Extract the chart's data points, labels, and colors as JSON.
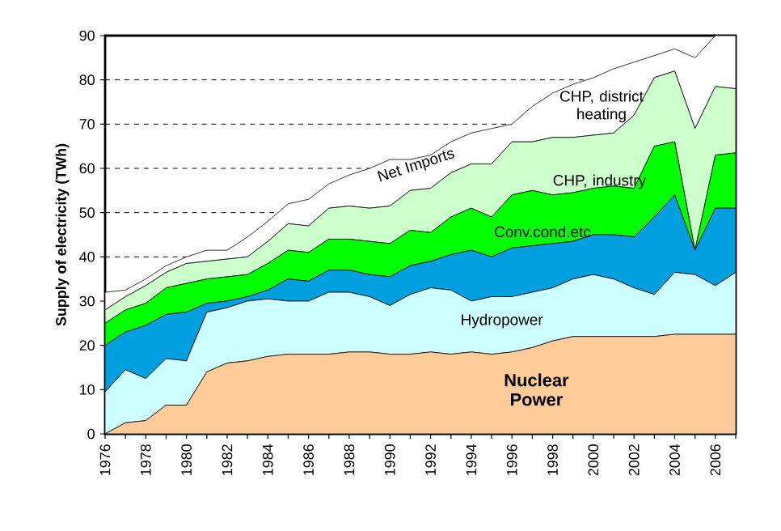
{
  "chart_data": {
    "type": "area",
    "stacked": true,
    "ylabel": "Supply of electricity (TWh)",
    "x": [
      1976,
      1977,
      1978,
      1979,
      1980,
      1981,
      1982,
      1983,
      1984,
      1985,
      1986,
      1987,
      1988,
      1989,
      1990,
      1991,
      1992,
      1993,
      1994,
      1995,
      1996,
      1997,
      1998,
      1999,
      2000,
      2001,
      2002,
      2003,
      2004,
      2005,
      2006,
      2007
    ],
    "xlim": [
      1976,
      2007
    ],
    "xticks": [
      {
        "value": 1976,
        "label": "1976"
      },
      {
        "value": 1977,
        "label": null
      },
      {
        "value": 1978,
        "label": "1978"
      },
      {
        "value": 1979,
        "label": null
      },
      {
        "value": 1980,
        "label": "1980"
      },
      {
        "value": 1981,
        "label": null
      },
      {
        "value": 1982,
        "label": "1982"
      },
      {
        "value": 1983,
        "label": null
      },
      {
        "value": 1984,
        "label": "1984"
      },
      {
        "value": 1985,
        "label": null
      },
      {
        "value": 1986,
        "label": "1986"
      },
      {
        "value": 1987,
        "label": null
      },
      {
        "value": 1988,
        "label": "1988"
      },
      {
        "value": 1989,
        "label": null
      },
      {
        "value": 1990,
        "label": "1990"
      },
      {
        "value": 1991,
        "label": null
      },
      {
        "value": 1992,
        "label": "1992"
      },
      {
        "value": 1993,
        "label": null
      },
      {
        "value": 1994,
        "label": "1994"
      },
      {
        "value": 1995,
        "label": null
      },
      {
        "value": 1996,
        "label": "1996"
      },
      {
        "value": 1997,
        "label": null
      },
      {
        "value": 1998,
        "label": "1998"
      },
      {
        "value": 1999,
        "label": null
      },
      {
        "value": 2000,
        "label": "2000"
      },
      {
        "value": 2001,
        "label": null
      },
      {
        "value": 2002,
        "label": "2002"
      },
      {
        "value": 2003,
        "label": null
      },
      {
        "value": 2004,
        "label": "2004"
      },
      {
        "value": 2005,
        "label": null
      },
      {
        "value": 2006,
        "label": "2006"
      },
      {
        "value": 2007,
        "label": null
      }
    ],
    "ylim": [
      0,
      90
    ],
    "yticks": [
      0,
      10,
      20,
      30,
      40,
      50,
      60,
      70,
      80,
      90
    ],
    "grid": "y",
    "series": [
      {
        "name": "Nuclear Power",
        "color": "#ffcc99",
        "values": [
          0,
          2.5,
          3,
          6.5,
          6.5,
          14,
          16,
          16.5,
          17.5,
          18,
          18,
          18,
          18.5,
          18.5,
          18,
          18,
          18.5,
          18,
          18.5,
          18,
          18.5,
          19.5,
          21,
          22,
          22,
          22,
          22,
          22,
          22.5,
          22.5,
          22.5,
          22.5
        ]
      },
      {
        "name": "Hydropower",
        "color": "#ccffff",
        "values": [
          9.5,
          12,
          9.5,
          10.5,
          10,
          13.5,
          12.5,
          13.5,
          13,
          12,
          12,
          14,
          13.5,
          12.5,
          11,
          13.5,
          14.5,
          14.5,
          11.5,
          13,
          12.5,
          12.5,
          12,
          13,
          14,
          13,
          11,
          9.5,
          14,
          13.5,
          11,
          14
        ]
      },
      {
        "name": "Conv.cond.etc",
        "color": "#00a0e0",
        "values": [
          10.5,
          8.5,
          12,
          10,
          11,
          2,
          1.5,
          1,
          2,
          5,
          4.5,
          5,
          5,
          5,
          6.5,
          6.5,
          6,
          8,
          11.5,
          9,
          11,
          10.5,
          10,
          8.5,
          9,
          10,
          11.5,
          17.5,
          17.5,
          5.5,
          17.5,
          14.5
        ]
      },
      {
        "name": "CHP, industry",
        "color": "#00ff00",
        "values": [
          5,
          5,
          5,
          6,
          6.5,
          5.5,
          5.5,
          5,
          6,
          6.5,
          6.5,
          7,
          7,
          7.5,
          7.5,
          8,
          6.5,
          8.5,
          9.5,
          9,
          12,
          12.5,
          11,
          11,
          10.5,
          11,
          11,
          16,
          12,
          0,
          12,
          12.5
        ]
      },
      {
        "name": "CHP, district heating",
        "color": "#ccffcc",
        "values": [
          3,
          3,
          4,
          3.5,
          4.5,
          4,
          4,
          4,
          5,
          6,
          6,
          7,
          7.5,
          7.5,
          8.5,
          9,
          10,
          10,
          10,
          12,
          12,
          11,
          13,
          12.5,
          12,
          12,
          16.5,
          15.5,
          16,
          27.5,
          15.5,
          14.5
        ]
      },
      {
        "name": "Net Imports",
        "color": "#ffffff",
        "values": [
          4,
          1.5,
          1.5,
          1.5,
          1.5,
          2.5,
          2,
          4.5,
          4.5,
          4.5,
          6,
          5.5,
          7,
          9,
          10.5,
          7,
          7.5,
          7,
          7,
          8,
          4,
          8,
          10,
          12,
          13,
          14.5,
          12,
          5,
          5,
          16,
          11.5,
          12
        ]
      }
    ]
  }
}
